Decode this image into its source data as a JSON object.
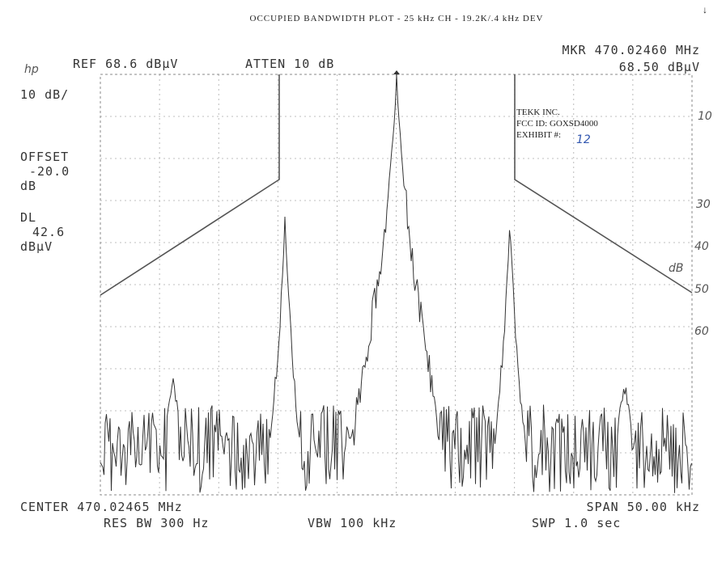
{
  "title": "OCCUPIED BANDWIDTH PLOT - 25 kHz CH - 19.2K/.4 kHz DEV",
  "corner_mark": "↓",
  "header": {
    "logo": "hp",
    "ref": "REF 68.6 dBµV",
    "atten": "ATTEN 10 dB",
    "marker_freq": "MKR 470.02460 MHz",
    "marker_level": "68.50 dBµV"
  },
  "left_panel": {
    "scale": "10 dB/",
    "offset_label": "OFFSET",
    "offset_value": "-20.0",
    "offset_unit": "dB",
    "dl_label": "DL",
    "dl_value": "42.6",
    "dl_unit": "dBµV"
  },
  "stamp": {
    "company": "TEKK INC.",
    "fcc_id": "FCC ID: GOXSD4000",
    "exhibit_label": "EXHIBIT #:",
    "exhibit_number": "12"
  },
  "handwritten": [
    "10",
    "30",
    "40",
    "dB",
    "50",
    "60"
  ],
  "footer": {
    "center": "CENTER 470.02465 MHz",
    "span": "SPAN 50.00 kHz",
    "res_bw": "RES BW 300 Hz",
    "vbw": "VBW 100 kHz",
    "sweep": "SWP 1.0 sec"
  }
}
